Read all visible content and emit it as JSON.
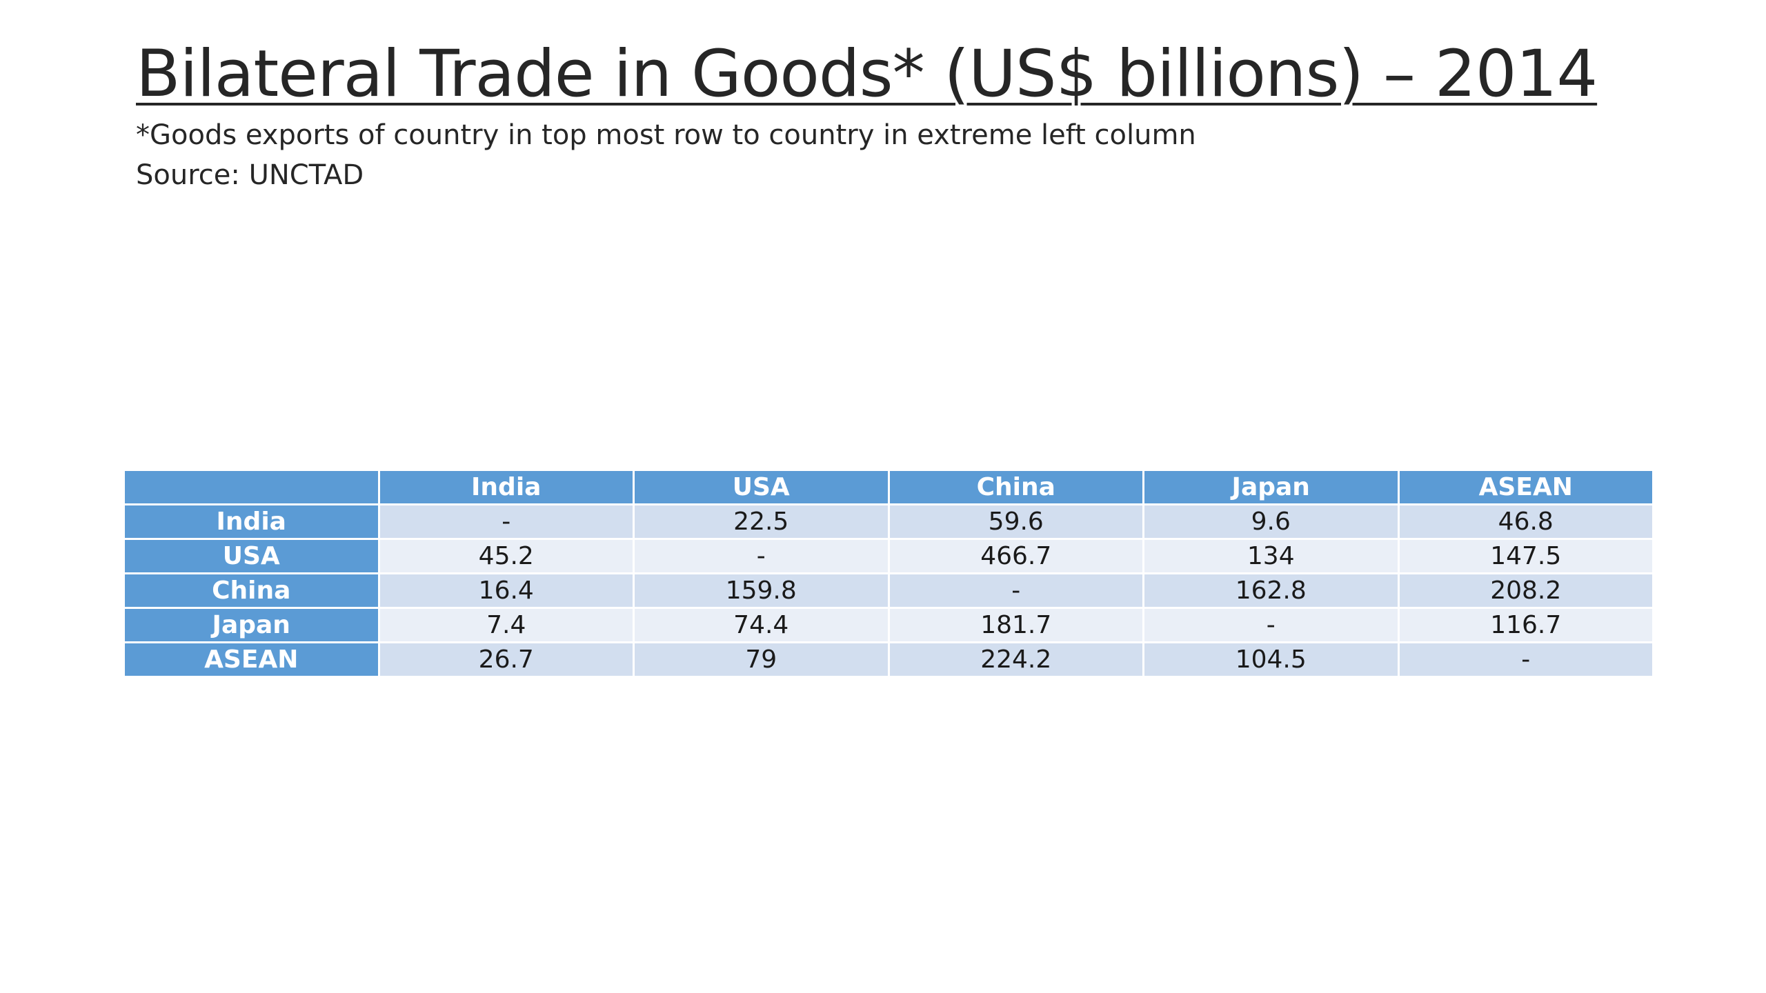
{
  "slide": {
    "title": "Bilateral Trade in Goods* (US$ billions) – 2014",
    "note": "*Goods exports of country in top most row to country in extreme left column",
    "source": "Source: UNCTAD"
  },
  "table": {
    "corner": "",
    "columns": [
      "India",
      "USA",
      "China",
      "Japan",
      "ASEAN"
    ],
    "rows": [
      {
        "label": "India",
        "values": [
          "-",
          "22.5",
          "59.6",
          "9.6",
          "46.8"
        ]
      },
      {
        "label": "USA",
        "values": [
          "45.2",
          "-",
          "466.7",
          "134",
          "147.5"
        ]
      },
      {
        "label": "China",
        "values": [
          "16.4",
          "159.8",
          "-",
          "162.8",
          "208.2"
        ]
      },
      {
        "label": "Japan",
        "values": [
          "7.4",
          "74.4",
          "181.7",
          "-",
          "116.7"
        ]
      },
      {
        "label": "ASEAN",
        "values": [
          "26.7",
          "79",
          "224.2",
          "104.5",
          "-"
        ]
      }
    ]
  },
  "colors": {
    "header_bg": "#5b9bd5",
    "row_odd_bg": "#d2deef",
    "row_even_bg": "#eaeff7"
  }
}
